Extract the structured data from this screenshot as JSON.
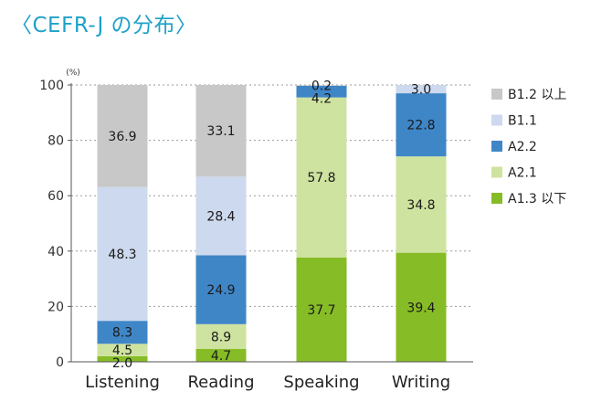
{
  "title": "〈CEFR-J の分布〉",
  "chart_data": {
    "type": "bar",
    "stacked": true,
    "title": "〈CEFR-J の分布〉",
    "unit_label": "(%)",
    "ylim": [
      0,
      100
    ],
    "yticks": [
      0,
      20,
      40,
      60,
      80,
      100
    ],
    "grid": "dotted horizontal",
    "legend_position": "right",
    "categories": [
      "Listening",
      "Reading",
      "Speaking",
      "Writing"
    ],
    "series": [
      {
        "name": "A1.3 以下",
        "color": "#86bc25",
        "values": [
          2.0,
          4.7,
          37.7,
          39.4
        ],
        "labels": [
          "2.0",
          "4.7",
          "37.7",
          "39.4"
        ]
      },
      {
        "name": "A2.1",
        "color": "#cfe3a0",
        "values": [
          4.5,
          8.9,
          57.8,
          34.8
        ],
        "labels": [
          "4.5",
          "8.9",
          "57.8",
          "34.8"
        ]
      },
      {
        "name": "A2.2",
        "color": "#3f86c7",
        "values": [
          8.3,
          24.9,
          4.2,
          22.8
        ],
        "labels": [
          "8.3",
          "24.9",
          "4.2",
          "22.8"
        ]
      },
      {
        "name": "B1.1",
        "color": "#cdd9ee",
        "values": [
          48.3,
          28.4,
          0.0,
          3.0
        ],
        "labels": [
          "48.3",
          "28.4",
          "",
          "3.0"
        ]
      },
      {
        "name": "B1.2 以上",
        "color": "#c8c8c8",
        "values": [
          36.9,
          33.1,
          0.2,
          0.0
        ],
        "labels": [
          "36.9",
          "33.1",
          "0.2",
          ""
        ]
      }
    ]
  }
}
